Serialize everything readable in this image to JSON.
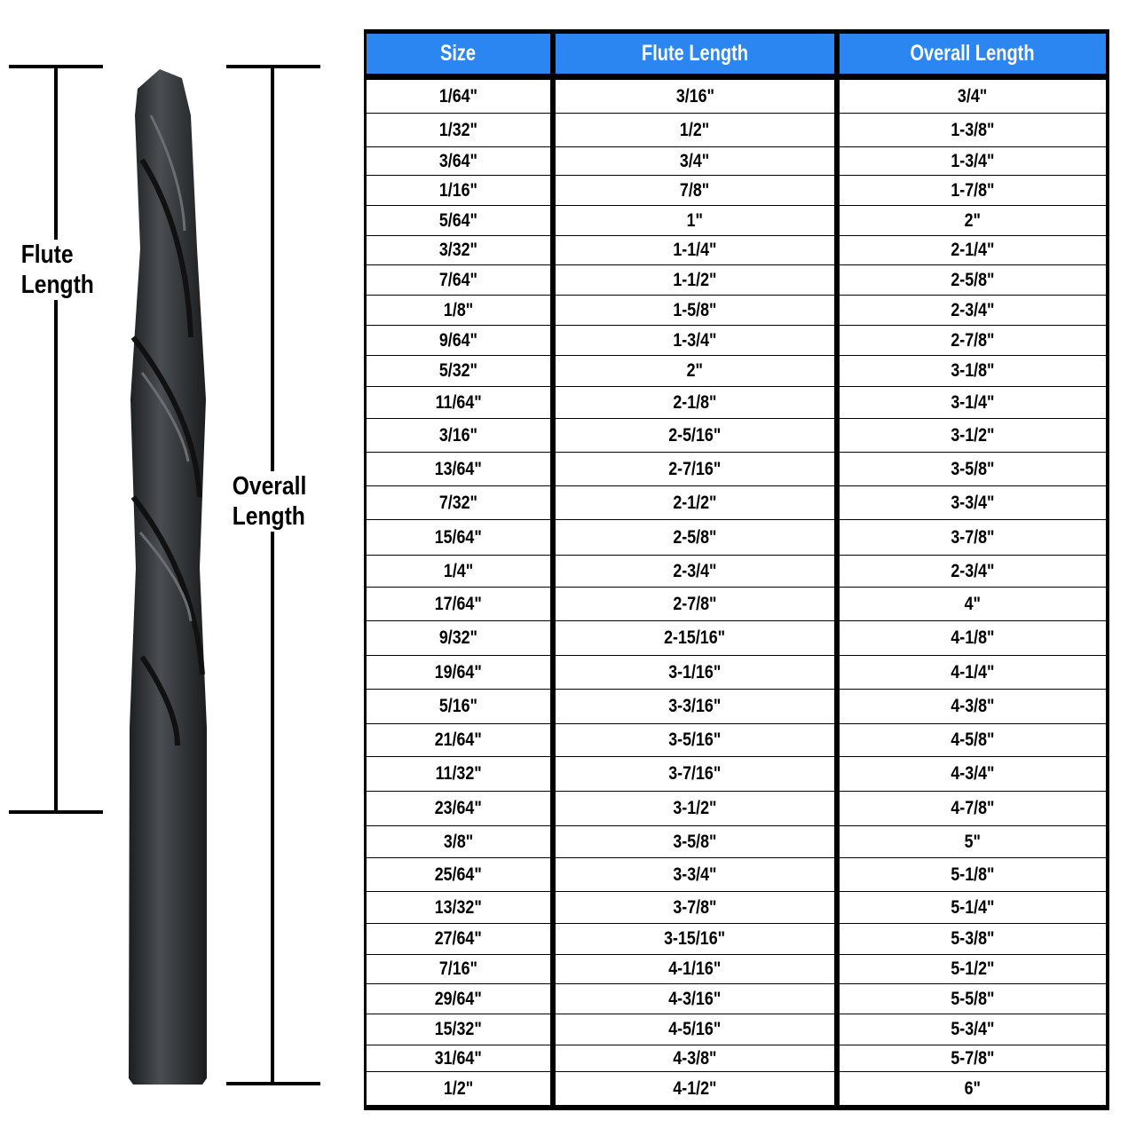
{
  "labels": {
    "flute_length": [
      "Flute",
      "Length"
    ],
    "overall_length": [
      "Overall",
      "Length"
    ]
  },
  "colors": {
    "header_bg": "#2b86f2",
    "header_text": "#ffffff",
    "drill_bit": "#2a2d30"
  },
  "table": {
    "headers": [
      "Size",
      "Flute Length",
      "Overall Length"
    ],
    "rows": [
      [
        "1/64\"",
        "3/16\"",
        "3/4\""
      ],
      [
        "1/32\"",
        "1/2\"",
        "1-3/8\""
      ],
      [
        "3/64\"",
        "3/4\"",
        "1-3/4\""
      ],
      [
        "1/16\"",
        "7/8\"",
        "1-7/8\""
      ],
      [
        "5/64\"",
        "1\"",
        "2\""
      ],
      [
        "3/32\"",
        "1-1/4\"",
        "2-1/4\""
      ],
      [
        "7/64\"",
        "1-1/2\"",
        "2-5/8\""
      ],
      [
        "1/8\"",
        "1-5/8\"",
        "2-3/4\""
      ],
      [
        "9/64\"",
        "1-3/4\"",
        "2-7/8\""
      ],
      [
        "5/32\"",
        "2\"",
        "3-1/8\""
      ],
      [
        "11/64\"",
        "2-1/8\"",
        "3-1/4\""
      ],
      [
        "3/16\"",
        "2-5/16\"",
        "3-1/2\""
      ],
      [
        "13/64\"",
        "2-7/16\"",
        "3-5/8\""
      ],
      [
        "7/32\"",
        "2-1/2\"",
        "3-3/4\""
      ],
      [
        "15/64\"",
        "2-5/8\"",
        "3-7/8\""
      ],
      [
        "1/4\"",
        "2-3/4\"",
        "2-3/4\""
      ],
      [
        "17/64\"",
        "2-7/8\"",
        "4\""
      ],
      [
        "9/32\"",
        "2-15/16\"",
        "4-1/8\""
      ],
      [
        "19/64\"",
        "3-1/16\"",
        "4-1/4\""
      ],
      [
        "5/16\"",
        "3-3/16\"",
        "4-3/8\""
      ],
      [
        "21/64\"",
        "3-5/16\"",
        "4-5/8\""
      ],
      [
        "11/32\"",
        "3-7/16\"",
        "4-3/4\""
      ],
      [
        "23/64\"",
        "3-1/2\"",
        "4-7/8\""
      ],
      [
        "3/8\"",
        "3-5/8\"",
        "5\""
      ],
      [
        "25/64\"",
        "3-3/4\"",
        "5-1/8\""
      ],
      [
        "13/32\"",
        "3-7/8\"",
        "5-1/4\""
      ],
      [
        "27/64\"",
        "3-15/16\"",
        "5-3/8\""
      ],
      [
        "7/16\"",
        "4-1/16\"",
        "5-1/2\""
      ],
      [
        "29/64\"",
        "4-3/16\"",
        "5-5/8\""
      ],
      [
        "15/32\"",
        "4-5/16\"",
        "5-3/4\""
      ],
      [
        "31/64\"",
        "4-3/8\"",
        "5-7/8\""
      ],
      [
        "1/2\"",
        "4-1/2\"",
        "6\""
      ]
    ]
  }
}
